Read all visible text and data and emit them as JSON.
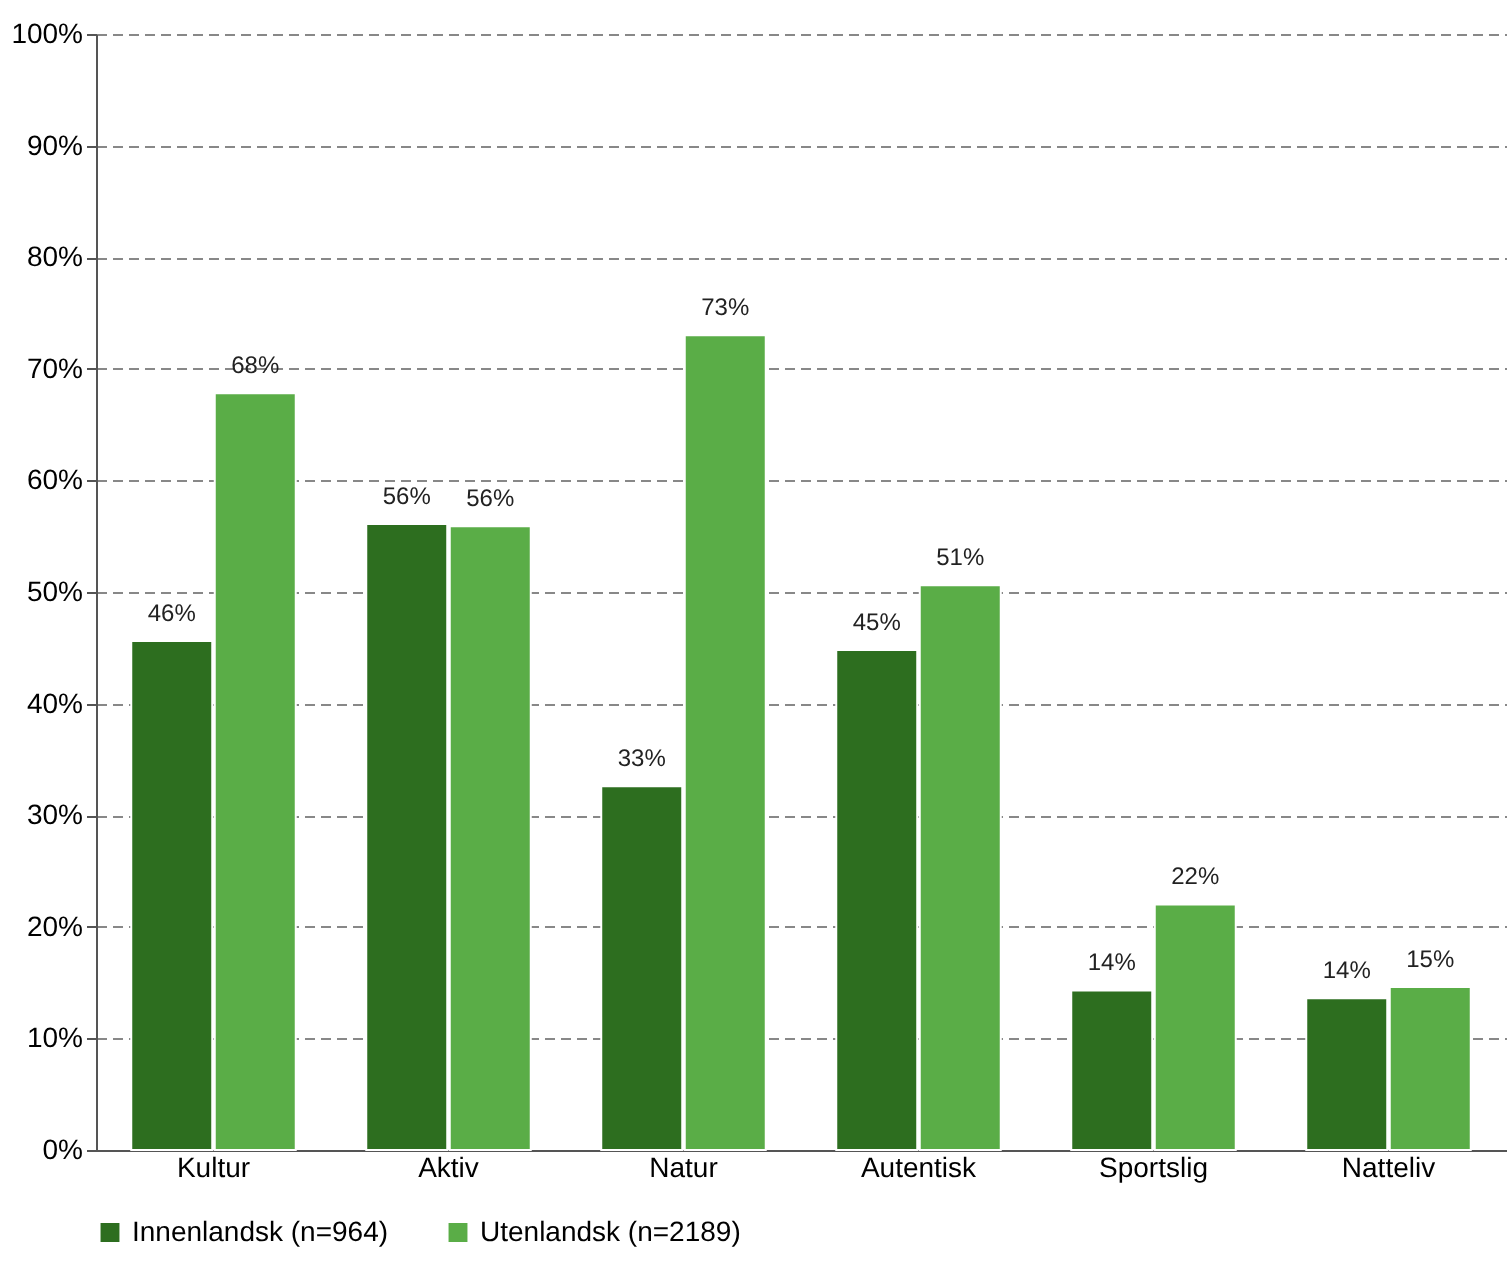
{
  "chart_data": {
    "type": "bar",
    "categories": [
      "Kultur",
      "Aktiv",
      "Natur",
      "Autentisk",
      "Sportslig",
      "Natteliv"
    ],
    "series": [
      {
        "name": "Innenlandsk (n=964)",
        "color": "#2d6e1f",
        "values": [
          45.6,
          56.1,
          32.6,
          44.8,
          14.3,
          13.6
        ],
        "value_labels": [
          "46%",
          "56%",
          "33%",
          "45%",
          "14%",
          "14%"
        ]
      },
      {
        "name": "Utenlandsk (n=2189)",
        "color": "#5aad47",
        "values": [
          67.8,
          55.9,
          73.0,
          50.6,
          22.0,
          14.6
        ],
        "value_labels": [
          "68%",
          "56%",
          "73%",
          "51%",
          "22%",
          "15%"
        ]
      }
    ],
    "ylim": [
      0,
      100
    ],
    "yticks": [
      {
        "value": 0,
        "label": "0%"
      },
      {
        "value": 10,
        "label": "10%"
      },
      {
        "value": 20,
        "label": "20%"
      },
      {
        "value": 30,
        "label": "30%"
      },
      {
        "value": 40,
        "label": "40%"
      },
      {
        "value": 50,
        "label": "50%"
      },
      {
        "value": 60,
        "label": "60%"
      },
      {
        "value": 70,
        "label": "70%"
      },
      {
        "value": 80,
        "label": "80%"
      },
      {
        "value": 90,
        "label": "90%"
      },
      {
        "value": 100,
        "label": "100%"
      }
    ],
    "grid": "y",
    "legend": "bottom"
  }
}
